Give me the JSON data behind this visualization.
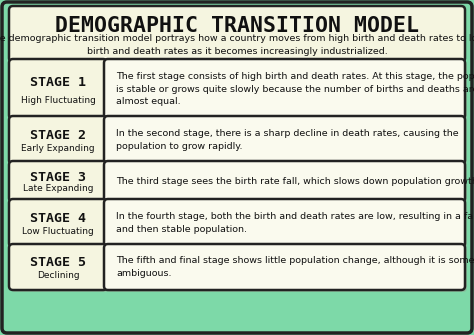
{
  "title": "DEMOGRAPHIC TRANSITION MODEL",
  "subtitle": "The demographic transition model portrays how a country moves from high birth and death rates to low\nbirth and death rates as it becomes increasingly industrialized.",
  "bg_color": "#7dd9a8",
  "stages": [
    {
      "label": "STAGE 1",
      "sublabel": "High Fluctuating",
      "description": "The first stage consists of high birth and death rates. At this stage, the population\nis stable or grows quite slowly because the number of births and deaths are\nalmost equal."
    },
    {
      "label": "STAGE 2",
      "sublabel": "Early Expanding",
      "description": "In the second stage, there is a sharp decline in death rates, causing the\npopulation to grow rapidly."
    },
    {
      "label": "STAGE 3",
      "sublabel": "Late Expanding",
      "description": "The third stage sees the birth rate fall, which slows down population growth."
    },
    {
      "label": "STAGE 4",
      "sublabel": "Low Fluctuating",
      "description": "In the fourth stage, both the birth and death rates are low, resulting in a falling\nand then stable population."
    },
    {
      "label": "STAGE 5",
      "sublabel": "Declining",
      "description": "The fifth and final stage shows little population change, although it is somewhat\nambiguous."
    }
  ],
  "title_fontsize": 15.5,
  "subtitle_fontsize": 6.8,
  "stage_label_fontsize": 9.5,
  "stage_sublabel_fontsize": 6.5,
  "desc_fontsize": 6.8,
  "box_facecolor": "#f5f5e0",
  "desc_facecolor": "#fafaee",
  "edge_color": "#222222",
  "text_color": "#111111"
}
